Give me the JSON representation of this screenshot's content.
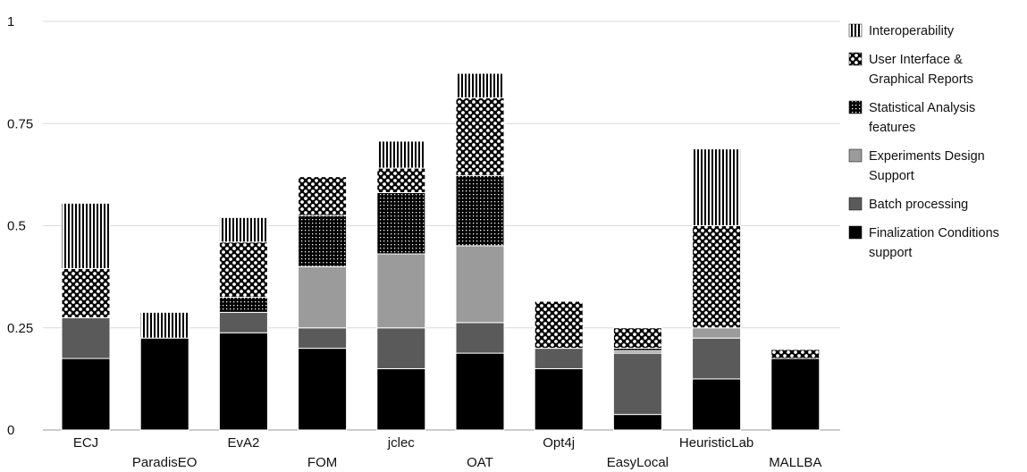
{
  "chart_data": {
    "type": "bar",
    "stacked": true,
    "categories": [
      "ECJ",
      "ParadisEO",
      "EvA2",
      "FOM",
      "jclec",
      "OAT",
      "Opt4j",
      "EasyLocal",
      "HeuristicLab",
      "MALLBA"
    ],
    "series": [
      {
        "name": "Finalization Conditions support",
        "pattern": "solid-black",
        "color": "#000000",
        "values": [
          0.175,
          0.225,
          0.238,
          0.2,
          0.15,
          0.188,
          0.15,
          0.038,
          0.125,
          0.175
        ]
      },
      {
        "name": "Batch processing",
        "pattern": "solid-dark-gray",
        "color": "#5a5a5a",
        "values": [
          0.1,
          0,
          0.05,
          0.05,
          0.1,
          0.075,
          0.05,
          0.15,
          0.1,
          0
        ]
      },
      {
        "name": "Experiments Design Support",
        "pattern": "solid-light-gray",
        "color": "#9b9b9b",
        "values": [
          0,
          0,
          0,
          0.15,
          0.181,
          0.188,
          0,
          0.006,
          0.025,
          0
        ]
      },
      {
        "name": "Statistical Analysis features",
        "pattern": "dense-dots",
        "color": "#000000",
        "values": [
          0,
          0,
          0.037,
          0.125,
          0.15,
          0.172,
          0,
          0.006,
          0,
          0
        ]
      },
      {
        "name": "User Interface & Graphical Reports",
        "pattern": "checker-circles",
        "color": "#000000",
        "values": [
          0.12,
          0,
          0.135,
          0.095,
          0.06,
          0.19,
          0.115,
          0.05,
          0.25,
          0.022
        ]
      },
      {
        "name": "Interoperability",
        "pattern": "vertical-lines",
        "color": "#000000",
        "values": [
          0.16,
          0.063,
          0.06,
          0,
          0.066,
          0.06,
          0,
          0,
          0.188,
          0
        ]
      }
    ],
    "legend_order": [
      "Interoperability",
      "User Interface & Graphical Reports",
      "Statistical Analysis features",
      "Experiments Design Support",
      "Batch processing",
      "Finalization Conditions support"
    ],
    "legend_lines": [
      [
        "Interoperability"
      ],
      [
        "User Interface &",
        "Graphical Reports"
      ],
      [
        "Statistical Analysis",
        "features"
      ],
      [
        "Experiments Design",
        "Support"
      ],
      [
        "Batch processing"
      ],
      [
        "Finalization Conditions",
        "support"
      ]
    ],
    "ylim": [
      0,
      1
    ],
    "yticks": [
      0,
      0.25,
      0.5,
      0.75,
      1
    ],
    "ytick_labels": [
      "0",
      "0.25",
      "0.5",
      "0.75",
      "1"
    ],
    "grid": true,
    "legend_position": "right",
    "title": "",
    "xlabel": "",
    "ylabel": ""
  }
}
